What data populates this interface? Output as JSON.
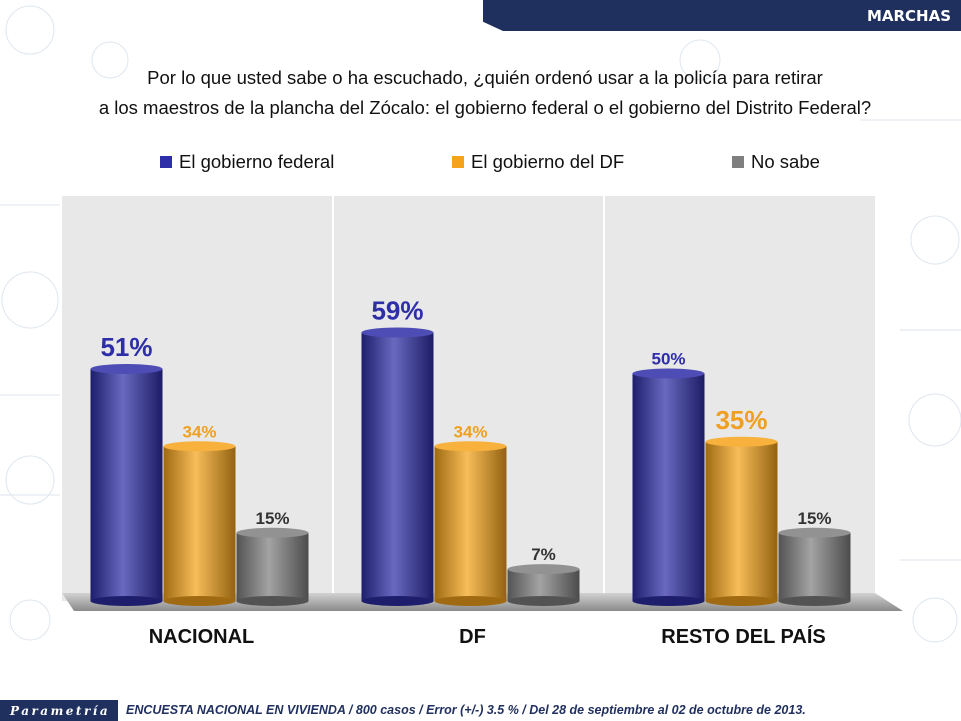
{
  "header": {
    "section_label": "MARCHAS"
  },
  "question": {
    "line1": "Por lo que usted sabe o ha escuchado, ¿quién ordenó usar a la policía para retirar",
    "line2": "a los maestros de la plancha del Zócalo: el gobierno federal o el gobierno del Distrito Federal?"
  },
  "colors": {
    "federal": "#2e2ea8",
    "df": "#f5a31a",
    "nosabe": "#7f7f7f",
    "federal_label": "#2e2ea8",
    "df_label": "#f0a020",
    "nosabe_label": "#333333"
  },
  "chart_data": {
    "type": "bar",
    "categories": [
      "NACIONAL",
      "DF",
      "RESTO DEL PAÍS"
    ],
    "series": [
      {
        "name": "El gobierno federal",
        "values": [
          51,
          59,
          50
        ]
      },
      {
        "name": "El gobierno del DF",
        "values": [
          34,
          34,
          35
        ]
      },
      {
        "name": "No sabe",
        "values": [
          15,
          7,
          15
        ]
      }
    ],
    "data_labels": [
      [
        "51%",
        "59%",
        "50%"
      ],
      [
        "34%",
        "34%",
        "35%"
      ],
      [
        "15%",
        "7%",
        "15%"
      ]
    ],
    "highlight_labels": [
      [
        0,
        0
      ],
      [
        0,
        1
      ],
      [
        1,
        2
      ]
    ],
    "ylim": [
      0,
      70
    ],
    "legend_position": "top",
    "grid": false
  },
  "footer": {
    "brand": "Parametría",
    "note": "ENCUESTA NACIONAL EN VIVIENDA / 800 casos / Error (+/-) 3.5 % / Del 28 de septiembre al 02 de octubre de 2013."
  }
}
